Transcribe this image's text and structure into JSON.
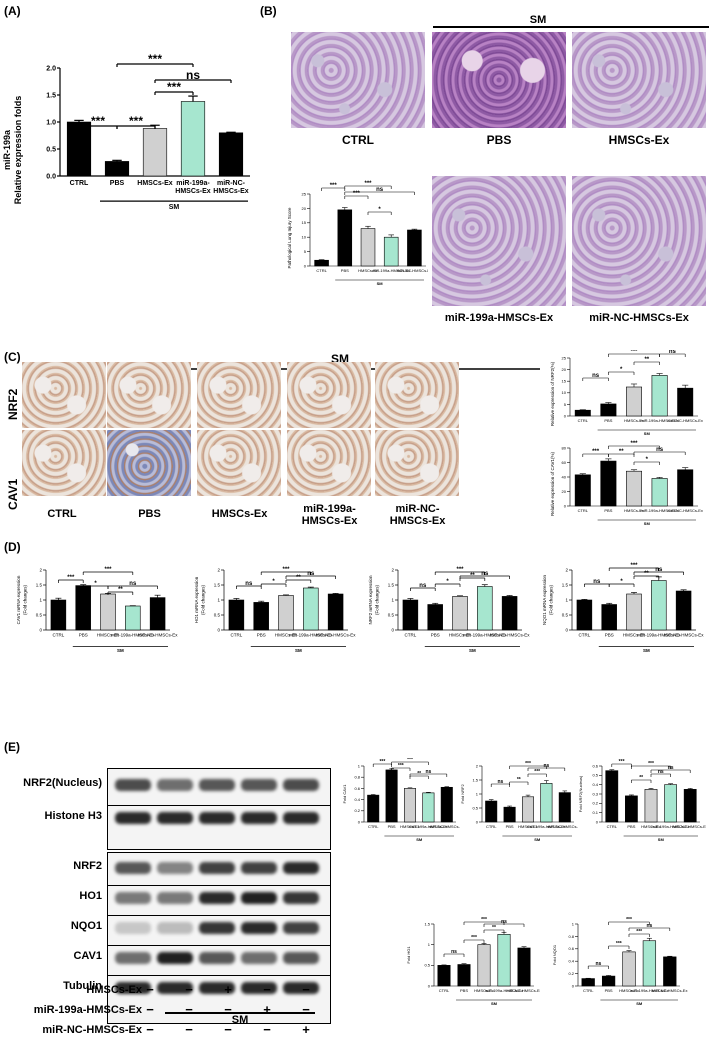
{
  "panels": {
    "A": "(A)",
    "B": "(B)",
    "C": "(C)",
    "D": "(D)",
    "E": "(E)"
  },
  "group": "SM",
  "sig": {
    "three": "***",
    "two": "**",
    "one": "*",
    "ns": "ns"
  },
  "panel_a": {
    "ylabel1": "miR-199a",
    "ylabel2": "Relative expression folds",
    "yticks": [
      "0.0",
      "0.5",
      "1.0",
      "1.5",
      "2.0"
    ],
    "categories": [
      "CTRL",
      "PBS",
      "HMSCs-Ex",
      "miR-199a-\nHMSCs-Ex",
      "miR-NC-\nHMSCs-Ex"
    ]
  },
  "panel_b": {
    "labels": {
      "ctrl": "CTRL",
      "pbs": "PBS",
      "hmsc": "HMSCs-Ex",
      "mir199": "miR-199a-HMSCs-Ex",
      "mirnc": "miR-NC-HMSCs-Ex"
    },
    "inset_ylabel": "Pathological Lung Injury Score"
  },
  "panel_c": {
    "rows": [
      "NRF2",
      "CAV1"
    ],
    "cols": [
      "CTRL",
      "PBS",
      "HMSCs-Ex",
      "miR-199a-\nHMSCs-Ex",
      "miR-NC-\nHMSCs-Ex"
    ],
    "ylabel_nrf2": "Relative expression of NRF2(%)",
    "ylabel_cav1": "Relative expression of CAV1(%)"
  },
  "panel_d": {
    "ylabels": [
      "CAV1 mRNA expression\n(Fold changes)",
      "HO1 mRNA expression\n(Fold changes)",
      "NRF2 mRNA expression\n(Fold changes)",
      "NQO1 mRNA expression\n(Fold changes)"
    ]
  },
  "panel_e": {
    "blot_labels": [
      "NRF2(Nucleus)",
      "Histone H3",
      "NRF2",
      "HO1",
      "NQO1",
      "CAV1",
      "Tubulin"
    ],
    "treat_labels": [
      "HMSCs-Ex",
      "miR-199a-HMSCs-Ex",
      "miR-NC-HMSCs-Ex"
    ],
    "treat_marks": [
      [
        "−",
        "−",
        "+",
        "−",
        "−"
      ],
      [
        "−",
        "−",
        "−",
        "+",
        "−"
      ],
      [
        "−",
        "−",
        "−",
        "−",
        "+"
      ]
    ],
    "chart_ylabels": [
      "Fold CAV1",
      "Fold NRF2",
      "Fold NRF2(Nucleus)",
      "Fold  HO1",
      "Fold NQO1"
    ]
  },
  "colors": {
    "black": "#000000",
    "gray": "#d0d0d0",
    "green": "#a6e6cf"
  },
  "chart_data": [
    {
      "id": "A",
      "type": "bar",
      "categories": [
        "CTRL",
        "PBS",
        "HMSCs-Ex",
        "miR-199a-HMSCs-Ex",
        "miR-NC-HMSCs-Ex"
      ],
      "values": [
        1.0,
        0.27,
        0.88,
        1.38,
        0.8
      ],
      "errors": [
        0.03,
        0.02,
        0.06,
        0.1,
        0.01
      ],
      "ylabel": "miR-199a Relative expression folds",
      "ylim": [
        0,
        2.0
      ]
    },
    {
      "id": "B-inset",
      "type": "bar",
      "categories": [
        "CTRL",
        "PBS",
        "HMSCs-Ex",
        "miR-199a-HMSCs-Ex",
        "miR-NC-HMSCs-Ex"
      ],
      "values": [
        2,
        19.5,
        13,
        10,
        12.5
      ],
      "errors": [
        0.2,
        0.8,
        0.8,
        0.8,
        0.3
      ],
      "ylabel": "Pathological Lung Injury Score",
      "ylim": [
        0,
        25
      ]
    },
    {
      "id": "C-NRF2",
      "type": "bar",
      "categories": [
        "CTRL",
        "PBS",
        "HMSCs-Ex",
        "miR-199a-HMSCs-Ex",
        "miR-NC-HMSCs-Ex"
      ],
      "values": [
        2.5,
        5.2,
        12.5,
        17.5,
        12
      ],
      "errors": [
        0.2,
        0.6,
        1.3,
        0.8,
        1.3
      ],
      "ylabel": "Relative expression of NRF2(%)",
      "ylim": [
        0,
        25
      ]
    },
    {
      "id": "C-CAV1",
      "type": "bar",
      "categories": [
        "CTRL",
        "PBS",
        "HMSCs-Ex",
        "miR-199a-HMSCs-Ex",
        "miR-NC-HMSCs-Ex"
      ],
      "values": [
        43,
        62,
        48,
        38,
        50
      ],
      "errors": [
        1.5,
        3,
        2,
        1.5,
        3
      ],
      "ylabel": "Relative expression of CAV1(%)",
      "ylim": [
        0,
        80
      ]
    },
    {
      "id": "D-CAV1",
      "type": "bar",
      "categories": [
        "CTRL",
        "PBS",
        "HMSCs-Ex",
        "miR-199a-HMSCs-Ex",
        "miR-NC-HMSCs-Ex"
      ],
      "values": [
        1.0,
        1.48,
        1.2,
        0.8,
        1.08
      ],
      "errors": [
        0.06,
        0.03,
        0.02,
        0.01,
        0.08
      ],
      "ylabel": "CAV1 mRNA expression (Fold changes)",
      "ylim": [
        0,
        2.0
      ]
    },
    {
      "id": "D-HO1",
      "type": "bar",
      "categories": [
        "CTRL",
        "PBS",
        "HMSCs-Ex",
        "miR-199a-HMSCs-Ex",
        "miR-NC-HMSCs-Ex"
      ],
      "values": [
        1.0,
        0.92,
        1.15,
        1.4,
        1.2
      ],
      "errors": [
        0.05,
        0.04,
        0.02,
        0.03,
        0.02
      ],
      "ylabel": "HO1 mRNA expression (Fold changes)",
      "ylim": [
        0,
        2.0
      ]
    },
    {
      "id": "D-NRF2",
      "type": "bar",
      "categories": [
        "CTRL",
        "PBS",
        "HMSCs-Ex",
        "miR-199a-HMSCs-Ex",
        "miR-NC-HMSCs-Ex"
      ],
      "values": [
        1.0,
        0.85,
        1.12,
        1.45,
        1.12
      ],
      "errors": [
        0.05,
        0.04,
        0.02,
        0.06,
        0.03
      ],
      "ylabel": "NRF2 mRNA expression (Fold changes)",
      "ylim": [
        0,
        2.0
      ]
    },
    {
      "id": "D-NQO1",
      "type": "bar",
      "categories": [
        "CTRL",
        "PBS",
        "HMSCs-Ex",
        "miR-199a-HMSCs-Ex",
        "miR-NC-HMSCs-Ex"
      ],
      "values": [
        1.0,
        0.85,
        1.2,
        1.65,
        1.3
      ],
      "errors": [
        0.02,
        0.04,
        0.05,
        0.12,
        0.04
      ],
      "ylabel": "NQO1 mRNA expression (Fold changes)",
      "ylim": [
        0,
        2.0
      ]
    },
    {
      "id": "E-CAV1",
      "type": "bar",
      "categories": [
        "CTRL",
        "PBS",
        "HMSCs-Ex",
        "miR-199a-HMSCs-Ex",
        "miR-NC-HMSCs-Ex"
      ],
      "values": [
        0.48,
        0.93,
        0.6,
        0.52,
        0.62
      ],
      "errors": [
        0.01,
        0.02,
        0.01,
        0.01,
        0.01
      ],
      "ylabel": "Fold CAV1",
      "ylim": [
        0,
        1.0
      ]
    },
    {
      "id": "E-NRF2",
      "type": "bar",
      "categories": [
        "CTRL",
        "PBS",
        "HMSCs-Ex",
        "miR-199a-HMSCs-Ex",
        "miR-NC-HMSCs-Ex"
      ],
      "values": [
        0.75,
        0.53,
        0.9,
        1.38,
        1.05
      ],
      "errors": [
        0.05,
        0.04,
        0.06,
        0.1,
        0.06
      ],
      "ylabel": "Fold NRF2",
      "ylim": [
        0,
        2.0
      ]
    },
    {
      "id": "E-NRF2N",
      "type": "bar",
      "categories": [
        "CTRL",
        "PBS",
        "HMSCs-Ex",
        "miR-199a-HMSCs-Ex",
        "miR-NC-HMSCs-Ex"
      ],
      "values": [
        0.55,
        0.28,
        0.35,
        0.4,
        0.35
      ],
      "errors": [
        0.01,
        0.01,
        0.01,
        0.01,
        0.01
      ],
      "ylabel": "Fold NRF2(Nucleus)",
      "ylim": [
        0,
        0.6
      ]
    },
    {
      "id": "E-HO1",
      "type": "bar",
      "categories": [
        "CTRL",
        "PBS",
        "HMSCs-Ex",
        "miR-199a-HMSCs-Ex",
        "miR-NC-HMSCs-Ex"
      ],
      "values": [
        0.5,
        0.52,
        1.0,
        1.25,
        0.92
      ],
      "errors": [
        0.01,
        0.02,
        0.03,
        0.05,
        0.03
      ],
      "ylabel": "Fold HO1",
      "ylim": [
        0,
        1.5
      ]
    },
    {
      "id": "E-NQO1",
      "type": "bar",
      "categories": [
        "CTRL",
        "PBS",
        "HMSCs-Ex",
        "miR-199a-HMSCs-Ex",
        "miR-NC-HMSCs-Ex"
      ],
      "values": [
        0.12,
        0.16,
        0.55,
        0.73,
        0.47
      ],
      "errors": [
        0.005,
        0.01,
        0.02,
        0.04,
        0.01
      ],
      "ylabel": "Fold NQO1",
      "ylim": [
        0,
        1.0
      ]
    }
  ]
}
